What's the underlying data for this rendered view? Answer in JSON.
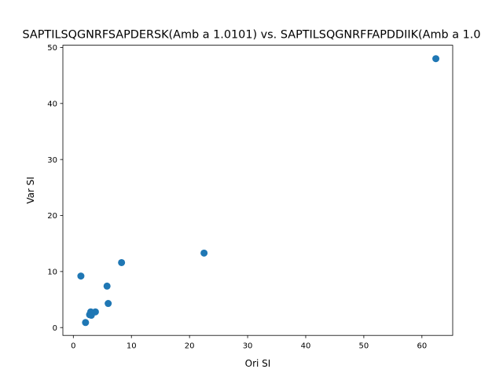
{
  "chart_data": {
    "type": "scatter",
    "title": "SAPTILSQGNRFSAPDERSK(Amb a 1.0101) vs. SAPTILSQGNRFFAPDDIIK(Amb a 1.0",
    "xlabel": "Ori SI",
    "ylabel": "Var SI",
    "xlim": [
      -1.8,
      65.3
    ],
    "ylim": [
      -1.4,
      50.4
    ],
    "xticks": [
      0,
      10,
      20,
      30,
      40,
      50,
      60
    ],
    "yticks": [
      0,
      10,
      20,
      30,
      40,
      50
    ],
    "grid": false,
    "marker_color": "#1f77b4",
    "points": [
      {
        "x": 62.4,
        "y": 48.0
      },
      {
        "x": 22.5,
        "y": 13.3
      },
      {
        "x": 8.3,
        "y": 11.6
      },
      {
        "x": 1.3,
        "y": 9.2
      },
      {
        "x": 5.8,
        "y": 7.4
      },
      {
        "x": 6.0,
        "y": 4.3
      },
      {
        "x": 3.8,
        "y": 2.8
      },
      {
        "x": 3.0,
        "y": 2.8
      },
      {
        "x": 2.8,
        "y": 2.3
      },
      {
        "x": 3.1,
        "y": 2.2
      },
      {
        "x": 2.1,
        "y": 0.9
      }
    ]
  }
}
